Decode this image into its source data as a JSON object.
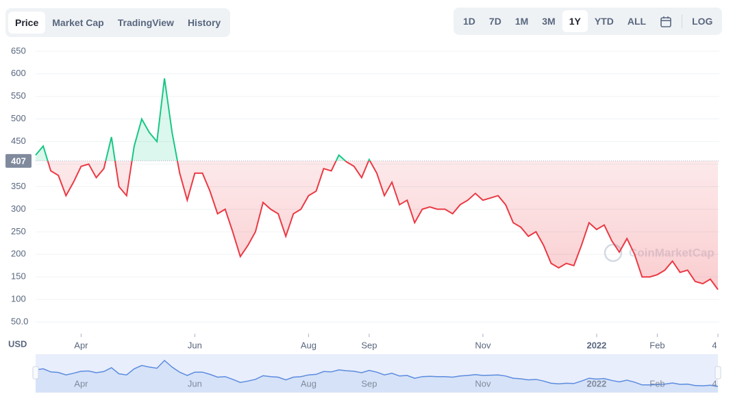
{
  "chart_data": {
    "type": "line",
    "tabs": [
      "Price",
      "Market Cap",
      "TradingView",
      "History"
    ],
    "active_tab": 0,
    "ranges": [
      "1D",
      "7D",
      "1M",
      "3M",
      "1Y",
      "YTD",
      "ALL"
    ],
    "active_range": 4,
    "log_button": "LOG",
    "y_label": "USD",
    "watermark": "CoinMarketCap",
    "baseline": 407,
    "up_color": "#16c784",
    "down_color": "#ea3943",
    "navigator_color": "#5b8be0",
    "grid": true,
    "ylim": [
      25,
      665
    ],
    "yticks": [
      {
        "value": 50,
        "label": "50.0"
      },
      100,
      150,
      200,
      250,
      300,
      350,
      400,
      450,
      500,
      550,
      600,
      650
    ],
    "categories": [
      null,
      null,
      null,
      null,
      null,
      null,
      "Apr",
      null,
      null,
      null,
      null,
      null,
      null,
      null,
      null,
      null,
      null,
      null,
      null,
      null,
      null,
      "Jun",
      null,
      null,
      null,
      null,
      null,
      null,
      null,
      null,
      null,
      null,
      null,
      null,
      null,
      null,
      "Aug",
      null,
      null,
      null,
      null,
      null,
      null,
      null,
      "Sep",
      null,
      null,
      null,
      null,
      null,
      null,
      null,
      null,
      null,
      null,
      null,
      null,
      null,
      null,
      "Nov",
      null,
      null,
      null,
      null,
      null,
      null,
      null,
      null,
      null,
      null,
      null,
      null,
      null,
      null,
      "2022",
      null,
      null,
      null,
      null,
      null,
      null,
      null,
      "Feb",
      null,
      null,
      null,
      null,
      null,
      null,
      null,
      "4"
    ],
    "values": [
      420,
      440,
      385,
      375,
      330,
      360,
      395,
      400,
      370,
      390,
      460,
      350,
      330,
      440,
      500,
      470,
      450,
      590,
      470,
      380,
      320,
      380,
      380,
      340,
      290,
      300,
      250,
      195,
      220,
      250,
      315,
      300,
      290,
      240,
      290,
      300,
      330,
      340,
      390,
      385,
      420,
      405,
      395,
      370,
      410,
      380,
      330,
      360,
      310,
      320,
      270,
      300,
      305,
      300,
      300,
      290,
      310,
      320,
      335,
      320,
      325,
      330,
      310,
      270,
      260,
      240,
      250,
      220,
      180,
      170,
      180,
      175,
      220,
      270,
      255,
      265,
      230,
      205,
      235,
      200,
      150,
      150,
      155,
      165,
      185,
      160,
      165,
      140,
      135,
      145,
      122
    ]
  }
}
